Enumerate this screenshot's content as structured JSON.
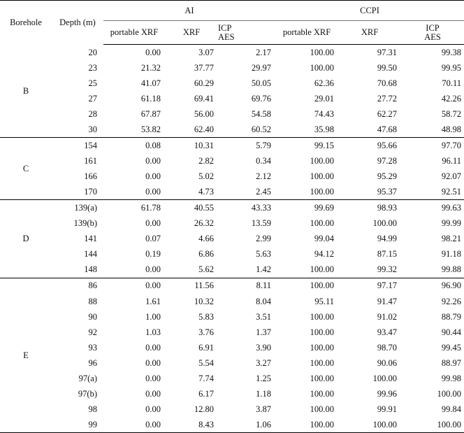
{
  "headers": {
    "borehole": "Borehole",
    "depth": "Depth (m)",
    "group_ai": "AI",
    "group_ccpi": "CCPI",
    "sub": {
      "portable": "portable XRF",
      "xrf": "XRF",
      "icp_line1": "ICP",
      "icp_line2": "AES"
    }
  },
  "groups": [
    {
      "borehole": "B",
      "rows": [
        {
          "depth": "20",
          "ai": [
            "0.00",
            "3.07",
            "2.17"
          ],
          "ccpi": [
            "100.00",
            "97.31",
            "99.38"
          ]
        },
        {
          "depth": "23",
          "ai": [
            "21.32",
            "37.77",
            "29.97"
          ],
          "ccpi": [
            "100.00",
            "99.50",
            "99.95"
          ]
        },
        {
          "depth": "25",
          "ai": [
            "41.07",
            "60.29",
            "50.05"
          ],
          "ccpi": [
            "62.36",
            "70.68",
            "70.11"
          ]
        },
        {
          "depth": "27",
          "ai": [
            "61.18",
            "69.41",
            "69.76"
          ],
          "ccpi": [
            "29.01",
            "27.72",
            "42.26"
          ]
        },
        {
          "depth": "28",
          "ai": [
            "67.87",
            "56.00",
            "54.58"
          ],
          "ccpi": [
            "74.43",
            "62.27",
            "58.72"
          ]
        },
        {
          "depth": "30",
          "ai": [
            "53.82",
            "62.40",
            "60.52"
          ],
          "ccpi": [
            "35.98",
            "47.68",
            "48.98"
          ]
        }
      ]
    },
    {
      "borehole": "C",
      "rows": [
        {
          "depth": "154",
          "ai": [
            "0.08",
            "10.31",
            "5.79"
          ],
          "ccpi": [
            "99.15",
            "95.66",
            "97.70"
          ]
        },
        {
          "depth": "161",
          "ai": [
            "0.00",
            "2.82",
            "0.34"
          ],
          "ccpi": [
            "100.00",
            "97.28",
            "96.11"
          ]
        },
        {
          "depth": "166",
          "ai": [
            "0.00",
            "5.02",
            "2.12"
          ],
          "ccpi": [
            "100.00",
            "95.29",
            "92.07"
          ]
        },
        {
          "depth": "170",
          "ai": [
            "0.00",
            "4.73",
            "2.45"
          ],
          "ccpi": [
            "100.00",
            "95.37",
            "92.51"
          ]
        }
      ]
    },
    {
      "borehole": "D",
      "rows": [
        {
          "depth": "139(a)",
          "ai": [
            "61.78",
            "40.55",
            "43.33"
          ],
          "ccpi": [
            "99.69",
            "98.93",
            "99.63"
          ]
        },
        {
          "depth": "139(b)",
          "ai": [
            "0.00",
            "26.32",
            "13.59"
          ],
          "ccpi": [
            "100.00",
            "100.00",
            "99.99"
          ]
        },
        {
          "depth": "141",
          "ai": [
            "0.07",
            "4.66",
            "2.99"
          ],
          "ccpi": [
            "99.04",
            "94.99",
            "98.21"
          ]
        },
        {
          "depth": "144",
          "ai": [
            "0.19",
            "6.86",
            "5.63"
          ],
          "ccpi": [
            "94.12",
            "87.15",
            "91.18"
          ]
        },
        {
          "depth": "148",
          "ai": [
            "0.00",
            "5.62",
            "1.42"
          ],
          "ccpi": [
            "100.00",
            "99.32",
            "99.88"
          ]
        }
      ]
    },
    {
      "borehole": "E",
      "rows": [
        {
          "depth": "86",
          "ai": [
            "0.00",
            "11.56",
            "8.11"
          ],
          "ccpi": [
            "100.00",
            "97.17",
            "96.90"
          ]
        },
        {
          "depth": "88",
          "ai": [
            "1.61",
            "10.32",
            "8.04"
          ],
          "ccpi": [
            "95.11",
            "91.47",
            "92.26"
          ]
        },
        {
          "depth": "90",
          "ai": [
            "1.00",
            "5.83",
            "3.51"
          ],
          "ccpi": [
            "100.00",
            "91.02",
            "88.79"
          ]
        },
        {
          "depth": "92",
          "ai": [
            "1.03",
            "3.76",
            "1.37"
          ],
          "ccpi": [
            "100.00",
            "93.47",
            "90.44"
          ]
        },
        {
          "depth": "93",
          "ai": [
            "0.00",
            "6.91",
            "3.90"
          ],
          "ccpi": [
            "100.00",
            "98.70",
            "99.45"
          ]
        },
        {
          "depth": "96",
          "ai": [
            "0.00",
            "5.54",
            "3.27"
          ],
          "ccpi": [
            "100.00",
            "90.06",
            "88.97"
          ]
        },
        {
          "depth": "97(a)",
          "ai": [
            "0.00",
            "7.74",
            "1.25"
          ],
          "ccpi": [
            "100.00",
            "100.00",
            "99.98"
          ]
        },
        {
          "depth": "97(b)",
          "ai": [
            "0.00",
            "6.17",
            "1.18"
          ],
          "ccpi": [
            "100.00",
            "99.96",
            "100.00"
          ]
        },
        {
          "depth": "98",
          "ai": [
            "0.00",
            "12.80",
            "3.87"
          ],
          "ccpi": [
            "100.00",
            "99.91",
            "99.84"
          ]
        },
        {
          "depth": "99",
          "ai": [
            "0.00",
            "8.43",
            "1.06"
          ],
          "ccpi": [
            "100.00",
            "100.00",
            "100.00"
          ]
        }
      ]
    }
  ]
}
